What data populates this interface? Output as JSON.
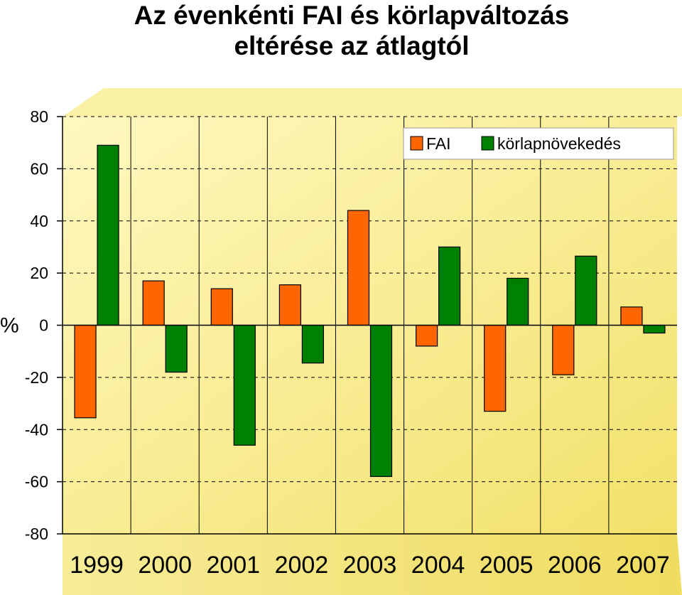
{
  "chart_data": {
    "type": "bar",
    "title_line1": "Az évenkénti FAI és körlapváltozás",
    "title_line2": "eltérése az átlagtól",
    "xlabel": "",
    "ylabel": "%",
    "categories": [
      "1999",
      "2000",
      "2001",
      "2002",
      "2003",
      "2004",
      "2005",
      "2006",
      "2007"
    ],
    "series": [
      {
        "name": "FAI",
        "color": "#ff6600",
        "values": [
          -35.5,
          17,
          14,
          15.5,
          44,
          -8,
          -33,
          -19,
          7
        ]
      },
      {
        "name": "körlapnövekedés",
        "color": "#008000",
        "values": [
          69,
          -18,
          -46,
          -14.5,
          -58,
          30,
          18,
          26.5,
          -3
        ]
      }
    ],
    "ylim": [
      -80,
      80
    ],
    "yticks": [
      -80,
      -60,
      -40,
      -20,
      0,
      20,
      40,
      60,
      80
    ],
    "grid": true,
    "legend_position": "top-right",
    "background_gradient": [
      "#fff8c0",
      "#f2e16a"
    ]
  }
}
